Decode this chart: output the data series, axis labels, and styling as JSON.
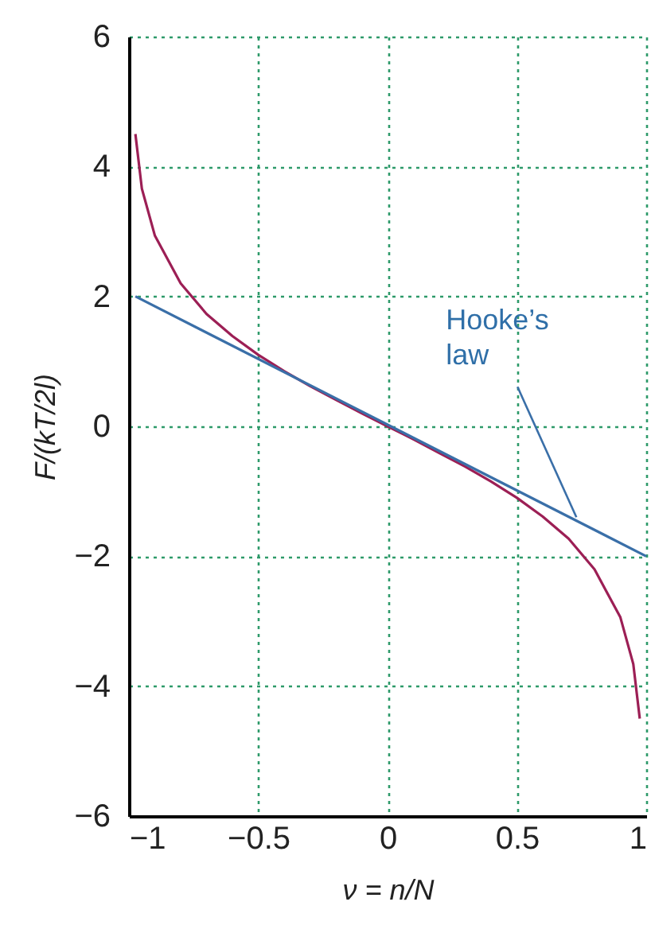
{
  "chart_data": {
    "type": "line",
    "xlabel": "ν = n/N",
    "ylabel": "F/(kT/2l)",
    "xlim": [
      -1,
      1
    ],
    "ylim": [
      -6,
      6
    ],
    "xticks": [
      -1,
      -0.5,
      0,
      0.5,
      1
    ],
    "yticks": [
      -6,
      -4,
      -2,
      0,
      2,
      4,
      6
    ],
    "grid": true,
    "marker": "none",
    "line_style": "solid",
    "series": [
      {
        "color": "#9c1f55",
        "x": [
          -0.975,
          -0.95,
          -0.9,
          -0.8,
          -0.7,
          -0.6,
          -0.5,
          -0.4,
          -0.3,
          -0.2,
          -0.1,
          0,
          0.1,
          0.2,
          0.3,
          0.4,
          0.5,
          0.6,
          0.7,
          0.8,
          0.9,
          0.95,
          0.975
        ],
        "values": [
          4.5,
          3.66,
          2.94,
          2.2,
          1.73,
          1.39,
          1.1,
          0.85,
          0.62,
          0.41,
          0.2,
          0,
          -0.2,
          -0.41,
          -0.62,
          -0.85,
          -1.1,
          -1.39,
          -1.73,
          -2.2,
          -2.94,
          -3.66,
          -4.5
        ]
      },
      {
        "color": "#3a6fa8",
        "x": [
          -0.975,
          1
        ],
        "values": [
          2,
          -2
        ]
      }
    ],
    "annotations": [
      {
        "text": "Hooke’s law",
        "x": 0.73,
        "y": -1.4
      }
    ]
  }
}
